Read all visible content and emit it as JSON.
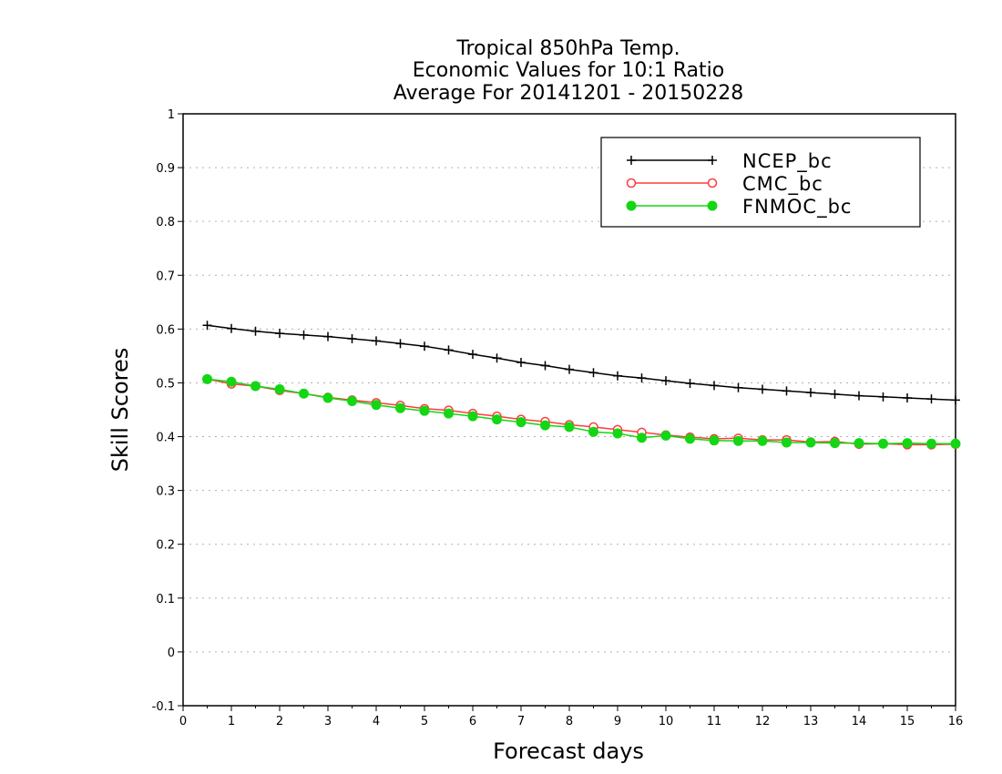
{
  "chart_data": {
    "type": "line",
    "title_lines": [
      "Tropical 850hPa Temp.",
      "Economic Values for 10:1 Ratio",
      "Average For 20141201 - 20150228"
    ],
    "xlabel": "Forecast days",
    "ylabel": "Skill Scores",
    "xlim": [
      0,
      16
    ],
    "ylim": [
      -0.1,
      1
    ],
    "x_ticks": [
      "0",
      "1",
      "2",
      "3",
      "4",
      "5",
      "6",
      "7",
      "8",
      "9",
      "10",
      "11",
      "12",
      "13",
      "14",
      "15",
      "16"
    ],
    "y_ticks": [
      "-0.1",
      "0",
      "0.1",
      "0.2",
      "0.3",
      "0.4",
      "0.5",
      "0.6",
      "0.7",
      "0.8",
      "0.9",
      "1"
    ],
    "grid": "horizontal dotted",
    "legend_position": "top-right",
    "x": [
      0.5,
      1,
      1.5,
      2,
      2.5,
      3,
      3.5,
      4,
      4.5,
      5,
      5.5,
      6,
      6.5,
      7,
      7.5,
      8,
      8.5,
      9,
      9.5,
      10,
      10.5,
      11,
      11.5,
      12,
      12.5,
      13,
      13.5,
      14,
      14.5,
      15,
      15.5,
      16
    ],
    "series": [
      {
        "name": "NCEP_bc",
        "color": "#000000",
        "marker": "plus",
        "values": [
          0.607,
          0.601,
          0.596,
          0.592,
          0.589,
          0.586,
          0.582,
          0.578,
          0.573,
          0.568,
          0.561,
          0.553,
          0.546,
          0.538,
          0.532,
          0.525,
          0.519,
          0.513,
          0.509,
          0.504,
          0.499,
          0.495,
          0.491,
          0.488,
          0.485,
          0.482,
          0.479,
          0.476,
          0.474,
          0.472,
          0.47,
          0.468
        ]
      },
      {
        "name": "CMC_bc",
        "color": "#ff3b3b",
        "marker": "open-circle",
        "values": [
          0.507,
          0.498,
          0.494,
          0.486,
          0.48,
          0.473,
          0.468,
          0.463,
          0.458,
          0.452,
          0.449,
          0.443,
          0.438,
          0.432,
          0.428,
          0.422,
          0.418,
          0.413,
          0.408,
          0.403,
          0.399,
          0.396,
          0.397,
          0.394,
          0.394,
          0.39,
          0.391,
          0.386,
          0.387,
          0.385,
          0.385,
          0.386
        ]
      },
      {
        "name": "FNMOC_bc",
        "color": "#14d614",
        "marker": "filled-circle",
        "values": [
          0.507,
          0.502,
          0.494,
          0.488,
          0.48,
          0.472,
          0.466,
          0.459,
          0.453,
          0.448,
          0.443,
          0.438,
          0.432,
          0.427,
          0.421,
          0.418,
          0.409,
          0.406,
          0.398,
          0.402,
          0.396,
          0.393,
          0.392,
          0.392,
          0.389,
          0.389,
          0.388,
          0.388,
          0.387,
          0.388,
          0.387,
          0.387
        ]
      }
    ]
  }
}
